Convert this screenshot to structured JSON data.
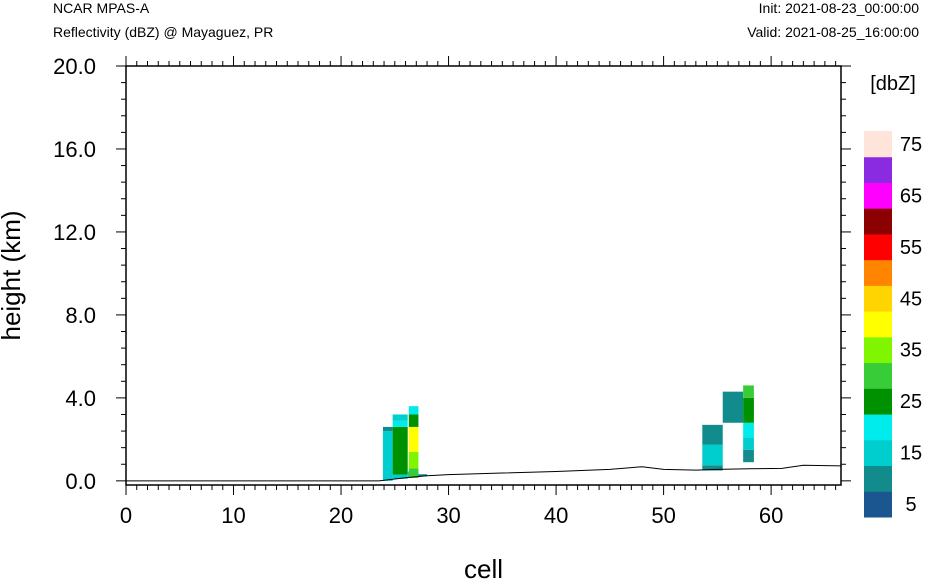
{
  "header": {
    "left_line1": "NCAR MPAS-A",
    "left_line2": "Reflectivity (dBZ) @ Mayaguez, PR",
    "right_line1": "Init: 2021-08-23_00:00:00",
    "right_line2": "Valid: 2021-08-25_16:00:00"
  },
  "chart_data": {
    "type": "heatmap",
    "title": "Reflectivity (dBZ) @ Mayaguez, PR",
    "xlabel": "cell",
    "ylabel": "height (km)",
    "xlim": [
      0,
      66.5
    ],
    "ylim": [
      -0.2,
      20.0
    ],
    "x_ticks": [
      0,
      10,
      20,
      30,
      40,
      50,
      60
    ],
    "x_tick_labels": [
      "0",
      "10",
      "20",
      "30",
      "40",
      "50",
      "60"
    ],
    "y_ticks": [
      0,
      4,
      8,
      12,
      16,
      20
    ],
    "y_tick_labels": [
      "0.0",
      "4.0",
      "8.0",
      "12.0",
      "16.0",
      "20.0"
    ],
    "grid": false,
    "colorbar": {
      "unit_label": "[dbZ]",
      "levels": [
        0,
        5,
        10,
        15,
        20,
        25,
        30,
        35,
        40,
        45,
        50,
        55,
        60,
        65,
        70,
        75
      ],
      "colors": [
        "#1b5690",
        "#118b8b",
        "#00cdcd",
        "#00ebeb",
        "#009100",
        "#38cc38",
        "#7ff500",
        "#ffff00",
        "#ffd400",
        "#ff8400",
        "#ff0000",
        "#8b0000",
        "#ff00ff",
        "#8a2be2",
        "#ffe4da"
      ],
      "tick_labels": [
        "5",
        "15",
        "25",
        "35",
        "45",
        "55",
        "65",
        "75"
      ]
    },
    "terrain_km": [
      [
        0,
        0.0
      ],
      [
        23.5,
        0.0
      ],
      [
        26,
        0.15
      ],
      [
        28,
        0.25
      ],
      [
        30,
        0.3
      ],
      [
        35,
        0.38
      ],
      [
        40,
        0.45
      ],
      [
        45,
        0.55
      ],
      [
        48,
        0.68
      ],
      [
        50,
        0.55
      ],
      [
        53,
        0.52
      ],
      [
        55,
        0.55
      ],
      [
        58,
        0.58
      ],
      [
        61,
        0.6
      ],
      [
        63,
        0.75
      ],
      [
        66.5,
        0.72
      ]
    ],
    "cells": [
      {
        "x0": 23.9,
        "x1": 24.8,
        "y0": 0.0,
        "y1": 2.4,
        "dbz": 10
      },
      {
        "x0": 23.9,
        "x1": 24.8,
        "y0": 2.4,
        "y1": 2.6,
        "dbz": 5
      },
      {
        "x0": 24.8,
        "x1": 26.2,
        "y0": 0.1,
        "y1": 0.3,
        "dbz": 10
      },
      {
        "x0": 24.8,
        "x1": 26.2,
        "y0": 0.3,
        "y1": 2.6,
        "dbz": 20
      },
      {
        "x0": 24.8,
        "x1": 26.2,
        "y0": 2.6,
        "y1": 2.9,
        "dbz": 15
      },
      {
        "x0": 24.8,
        "x1": 26.2,
        "y0": 2.9,
        "y1": 3.2,
        "dbz": 10
      },
      {
        "x0": 26.2,
        "x1": 27.2,
        "y0": 0.15,
        "y1": 0.45,
        "dbz": 10
      },
      {
        "x0": 26.3,
        "x1": 27.2,
        "y0": 0.15,
        "y1": 0.6,
        "dbz": 25
      },
      {
        "x0": 26.3,
        "x1": 27.2,
        "y0": 0.6,
        "y1": 1.4,
        "dbz": 30
      },
      {
        "x0": 26.3,
        "x1": 27.2,
        "y0": 1.4,
        "y1": 2.6,
        "dbz": 35
      },
      {
        "x0": 26.3,
        "x1": 27.2,
        "y0": 2.6,
        "y1": 3.2,
        "dbz": 20
      },
      {
        "x0": 26.3,
        "x1": 27.2,
        "y0": 3.2,
        "y1": 3.6,
        "dbz": 15
      },
      {
        "x0": 27.2,
        "x1": 28.0,
        "y0": 0.22,
        "y1": 0.32,
        "dbz": 5
      },
      {
        "x0": 53.6,
        "x1": 55.5,
        "y0": 0.5,
        "y1": 0.75,
        "dbz": 5
      },
      {
        "x0": 53.6,
        "x1": 55.5,
        "y0": 0.75,
        "y1": 1.75,
        "dbz": 10
      },
      {
        "x0": 53.6,
        "x1": 55.5,
        "y0": 1.75,
        "y1": 2.7,
        "dbz": 5
      },
      {
        "x0": 55.5,
        "x1": 57.4,
        "y0": 2.8,
        "y1": 4.3,
        "dbz": 5
      },
      {
        "x0": 57.4,
        "x1": 58.4,
        "y0": 0.9,
        "y1": 1.5,
        "dbz": 5
      },
      {
        "x0": 57.4,
        "x1": 58.4,
        "y0": 1.5,
        "y1": 2.1,
        "dbz": 10
      },
      {
        "x0": 57.4,
        "x1": 58.4,
        "y0": 2.1,
        "y1": 2.8,
        "dbz": 15
      },
      {
        "x0": 57.4,
        "x1": 58.4,
        "y0": 2.8,
        "y1": 4.0,
        "dbz": 20
      },
      {
        "x0": 57.4,
        "x1": 58.4,
        "y0": 4.0,
        "y1": 4.6,
        "dbz": 25
      }
    ]
  }
}
